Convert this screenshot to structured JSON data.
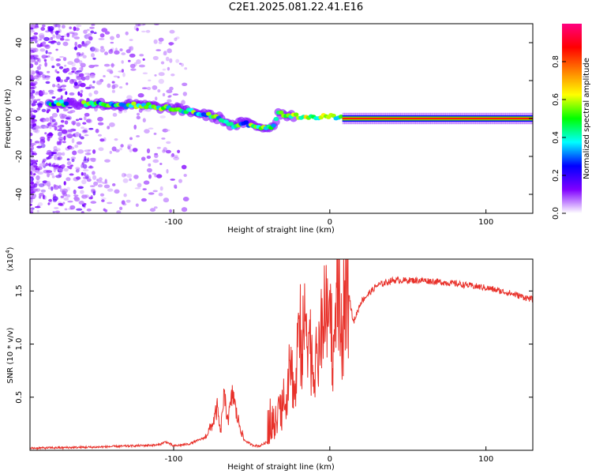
{
  "title": "C2E1.2025.081.22.41.E16",
  "chart_data": [
    {
      "type": "heatmap",
      "title": "C2E1.2025.081.22.41.E16",
      "xlabel": "Height of straight line (km)",
      "ylabel": "Frequency (Hz)",
      "xlim": [
        -192,
        130
      ],
      "ylim": [
        -50,
        50
      ],
      "xticks": [
        -100,
        0,
        100
      ],
      "yticks": [
        -40,
        -20,
        0,
        20,
        40
      ],
      "xtick_labels": [
        "-100",
        "0",
        "100"
      ],
      "ytick_labels": [
        "-40",
        "-20",
        "0",
        "20",
        "40"
      ],
      "ridge": {
        "x": [
          -180,
          -165,
          -150,
          -140,
          -130,
          -120,
          -110,
          -100,
          -90,
          -80,
          -70,
          -62,
          -55,
          -48,
          -40,
          -35,
          -33,
          -28,
          -20,
          -10,
          0,
          10,
          40,
          130
        ],
        "y": [
          8,
          8,
          8,
          7,
          7,
          7,
          6,
          5,
          4,
          2,
          0,
          -4,
          -2,
          -4,
          -5,
          -3,
          3,
          2,
          1,
          1,
          1,
          0,
          0,
          0
        ]
      },
      "colorbar": {
        "label": "Normalized spectral amplitude",
        "ticks": [
          0.0,
          0.2,
          0.4,
          0.6,
          0.8
        ],
        "tick_labels": [
          "0.0",
          "0.2",
          "0.4",
          "0.6",
          "0.8"
        ],
        "range": [
          0,
          1
        ],
        "colors": [
          "#ffffff",
          "#8000ff",
          "#0000ff",
          "#00ffff",
          "#00ff00",
          "#ffff00",
          "#ff8000",
          "#ff0000",
          "#ff0080"
        ]
      }
    },
    {
      "type": "line",
      "xlabel": "Height of straight line (km)",
      "ylabel": "SNR (10 * v/v)",
      "multiplier_label": "(x10",
      "multiplier_exp": "4",
      "multiplier_close": ")",
      "xlim": [
        -192,
        130
      ],
      "ylim": [
        0,
        1.8
      ],
      "xticks": [
        -100,
        0,
        100
      ],
      "yticks": [
        0.5,
        1.0,
        1.5
      ],
      "xtick_labels": [
        "-100",
        "0",
        "100"
      ],
      "ytick_labels": [
        "0.5",
        "1.0",
        "1.5"
      ],
      "series": [
        {
          "name": "SNR",
          "color": "#e8312a",
          "x": [
            -192,
            -150,
            -110,
            -105,
            -100,
            -90,
            -80,
            -75,
            -72,
            -70,
            -68,
            -65,
            -62,
            -60,
            -57,
            -55,
            -50,
            -45,
            -40,
            -35,
            -32,
            -30,
            -25,
            -22,
            -20,
            -18,
            -15,
            -10,
            -5,
            0,
            3,
            5,
            8,
            10,
            15,
            20,
            30,
            40,
            60,
            80,
            100,
            115,
            130
          ],
          "y": [
            0.02,
            0.03,
            0.05,
            0.08,
            0.04,
            0.06,
            0.12,
            0.25,
            0.4,
            0.15,
            0.5,
            0.3,
            0.55,
            0.35,
            0.2,
            0.1,
            0.05,
            0.04,
            0.08,
            0.2,
            0.4,
            0.3,
            0.8,
            0.5,
            1.2,
            0.9,
            1.3,
            0.7,
            1.1,
            1.3,
            0.8,
            1.5,
            0.9,
            1.7,
            1.2,
            1.4,
            1.55,
            1.6,
            1.6,
            1.57,
            1.53,
            1.48,
            1.42
          ]
        }
      ]
    }
  ]
}
